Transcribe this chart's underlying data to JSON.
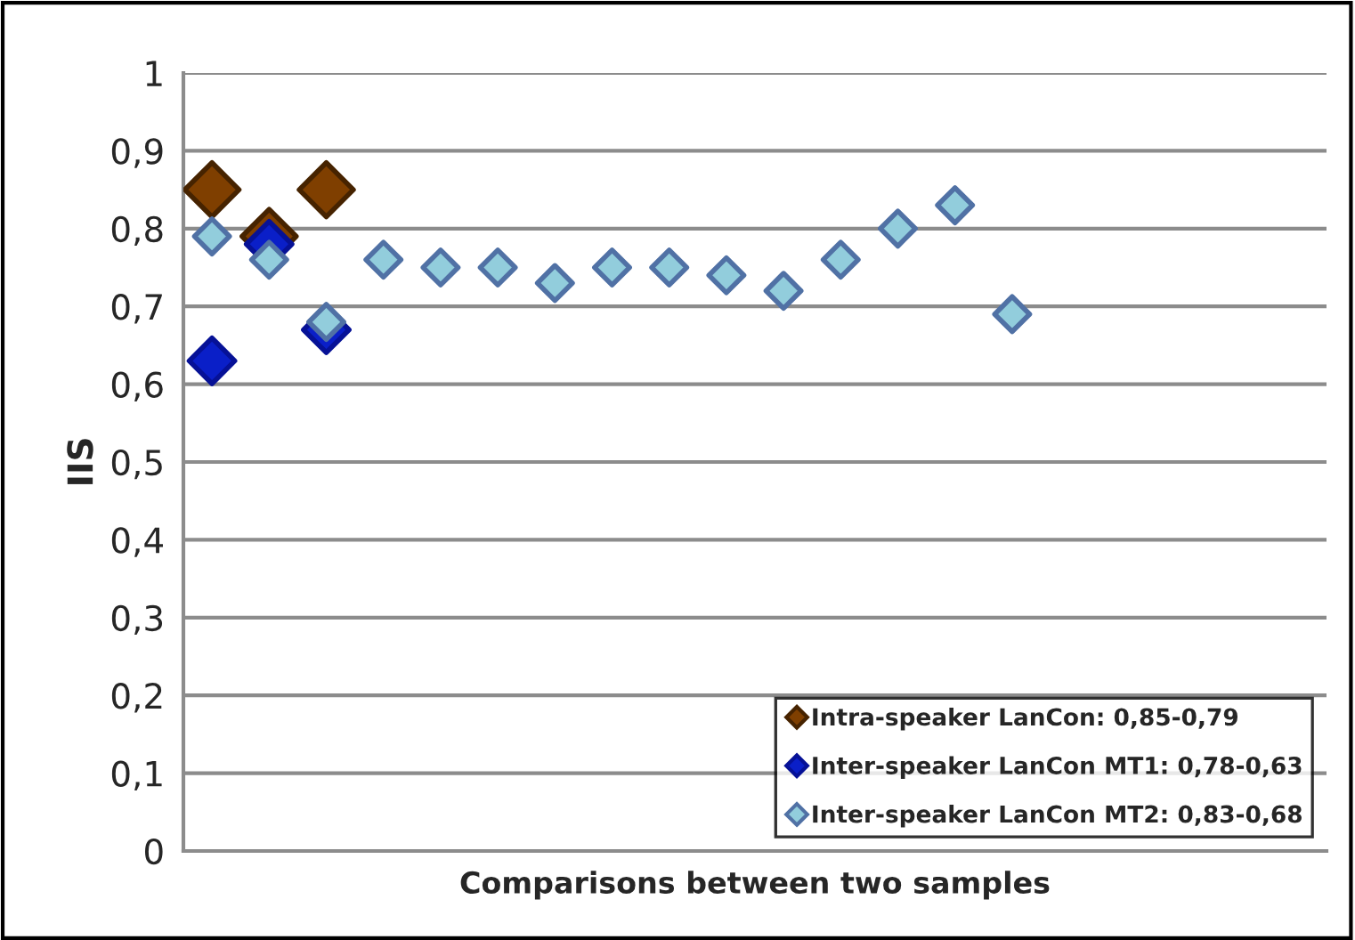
{
  "chart_data": {
    "type": "scatter",
    "xlabel": "Comparisons between two samples",
    "ylabel": "IIS",
    "categories": [
      null,
      null,
      null,
      null,
      null,
      null,
      null,
      null,
      null,
      null,
      null,
      null,
      null,
      null,
      null,
      null,
      null,
      null,
      null,
      null
    ],
    "series": [
      {
        "name": "Intra-speaker LanCon: 0,85-0,79",
        "color": "#7f3f00",
        "values": [
          0.85,
          0.79,
          0.85,
          null,
          null,
          null,
          null,
          null,
          null,
          null,
          null,
          null,
          null,
          null,
          null,
          null,
          null,
          null,
          null,
          null
        ]
      },
      {
        "name": "Inter-speaker LanCon MT1: 0,78-0,63",
        "color": "#0a1fc8",
        "values": [
          0.63,
          0.78,
          0.67,
          null,
          null,
          null,
          null,
          null,
          null,
          null,
          null,
          null,
          null,
          null,
          null,
          null,
          null,
          null,
          null,
          null
        ]
      },
      {
        "name": "Inter-speaker LanCon MT2: 0,83-0,68",
        "color": "#92cddc",
        "values": [
          0.79,
          0.76,
          0.68,
          0.76,
          0.75,
          0.75,
          0.73,
          0.75,
          0.75,
          0.74,
          0.72,
          0.76,
          0.8,
          0.83,
          0.69,
          null,
          null,
          null,
          null,
          null
        ]
      }
    ],
    "ylim": [
      0,
      1
    ],
    "yticks": [
      {
        "value": 0,
        "label": "0"
      },
      {
        "value": 0.1,
        "label": "0,1"
      },
      {
        "value": 0.2,
        "label": "0,2"
      },
      {
        "value": 0.3,
        "label": "0,3"
      },
      {
        "value": 0.4,
        "label": "0,4"
      },
      {
        "value": 0.5,
        "label": "0,5"
      },
      {
        "value": 0.6,
        "label": "0,6"
      },
      {
        "value": 0.7,
        "label": "0,7"
      },
      {
        "value": 0.8,
        "label": "0,8"
      },
      {
        "value": 0.9,
        "label": "0,9"
      },
      {
        "value": 1,
        "label": "1"
      }
    ],
    "grid": "y",
    "legend": "bottom right",
    "marker": "diamond",
    "tick_labels": "y"
  }
}
